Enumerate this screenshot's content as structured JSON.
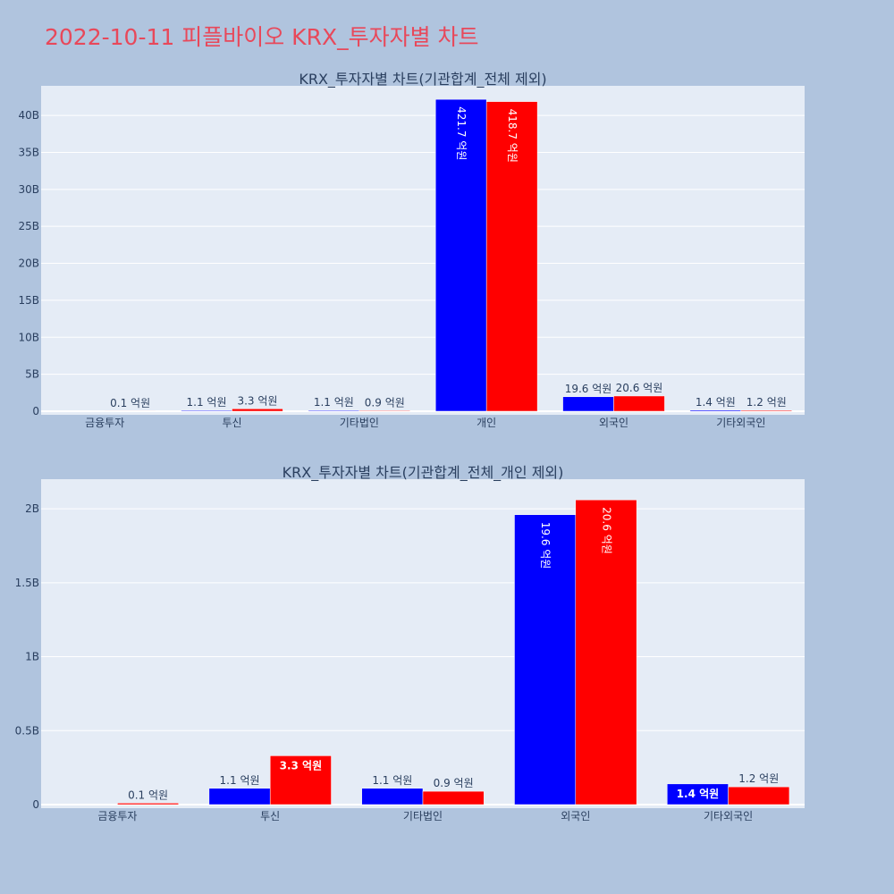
{
  "title": "2022-10-11 피플바이오 KRX_투자자별 차트",
  "colors": {
    "series1": "#0000ff",
    "series2": "#ff0000",
    "plot_bg": "#e5ecf6",
    "page_bg": "#b0c4de",
    "title": "#e8485a"
  },
  "chart_data": [
    {
      "type": "bar",
      "title": "KRX_투자자별 차트(기관합계_전체 제외)",
      "categories": [
        "금융투자",
        "투신",
        "기타법인",
        "개인",
        "외국인",
        "기타외국인"
      ],
      "ylim": [
        0,
        44
      ],
      "yticks": [
        0,
        5,
        10,
        15,
        20,
        25,
        30,
        35,
        40
      ],
      "ytick_labels": [
        "0",
        "5B",
        "10B",
        "15B",
        "20B",
        "25B",
        "30B",
        "35B",
        "40B"
      ],
      "grid": true,
      "series": [
        {
          "values": [
            0,
            0.11,
            0.11,
            42.17,
            1.96,
            0.14
          ],
          "labels": [
            "",
            "1.1 억원",
            "1.1 억원",
            "421.7 억원",
            "19.6 억원",
            "1.4 억원"
          ]
        },
        {
          "values": [
            0.01,
            0.33,
            0.09,
            41.87,
            2.06,
            0.12
          ],
          "labels": [
            "0.1 억원",
            "3.3 억원",
            "0.9 억원",
            "418.7 억원",
            "20.6 억원",
            "1.2 억원"
          ]
        }
      ]
    },
    {
      "type": "bar",
      "title": "KRX_투자자별 차트(기관합계_전체_개인 제외)",
      "categories": [
        "금융투자",
        "투신",
        "기타법인",
        "외국인",
        "기타외국인"
      ],
      "ylim": [
        0,
        2.2
      ],
      "yticks": [
        0,
        0.5,
        1,
        1.5,
        2
      ],
      "ytick_labels": [
        "0",
        "0.5B",
        "1B",
        "1.5B",
        "2B"
      ],
      "grid": true,
      "series": [
        {
          "values": [
            0,
            0.11,
            0.11,
            1.96,
            0.14
          ],
          "labels": [
            "",
            "1.1 억원",
            "1.1 억원",
            "19.6 억원",
            "1.4 억원"
          ]
        },
        {
          "values": [
            0.01,
            0.33,
            0.09,
            2.06,
            0.12
          ],
          "labels": [
            "0.1 억원",
            "3.3 억원",
            "0.9 억원",
            "20.6 억원",
            "1.2 억원"
          ]
        }
      ]
    }
  ]
}
